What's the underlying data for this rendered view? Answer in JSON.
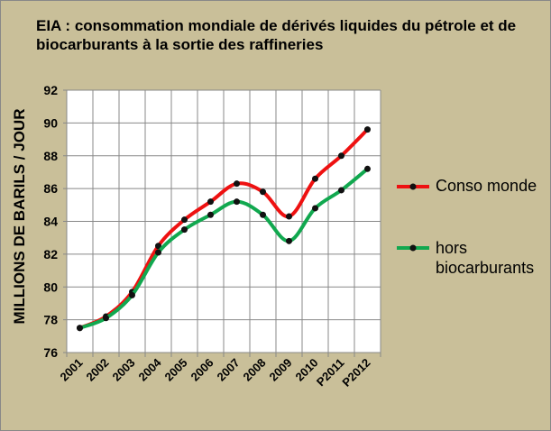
{
  "chart_data": {
    "type": "line",
    "title": "EIA :  consommation mondiale de dérivés liquides du pétrole et de biocarburants à la sortie des raffineries",
    "ylabel": "MILLIONS DE BARILS / JOUR",
    "xlabel": "",
    "ylim": [
      76,
      92
    ],
    "yticks": [
      "76",
      "78",
      "80",
      "82",
      "84",
      "86",
      "88",
      "90",
      "92"
    ],
    "categories": [
      "2001",
      "2002",
      "2003",
      "2004",
      "2005",
      "2006",
      "2007",
      "2008",
      "2009",
      "2010",
      "P2011",
      "P2012"
    ],
    "grid": true,
    "legend_position": "right",
    "series": [
      {
        "name": "Conso monde",
        "color": "#ee1111",
        "values": [
          77.5,
          78.2,
          79.7,
          82.5,
          84.1,
          85.2,
          86.3,
          85.8,
          84.3,
          86.6,
          88.0,
          89.6
        ]
      },
      {
        "name": "hors biocarburants",
        "color": "#11a84f",
        "values": [
          77.5,
          78.1,
          79.5,
          82.1,
          83.5,
          84.4,
          85.2,
          84.4,
          82.8,
          84.8,
          85.9,
          87.2
        ]
      }
    ]
  }
}
